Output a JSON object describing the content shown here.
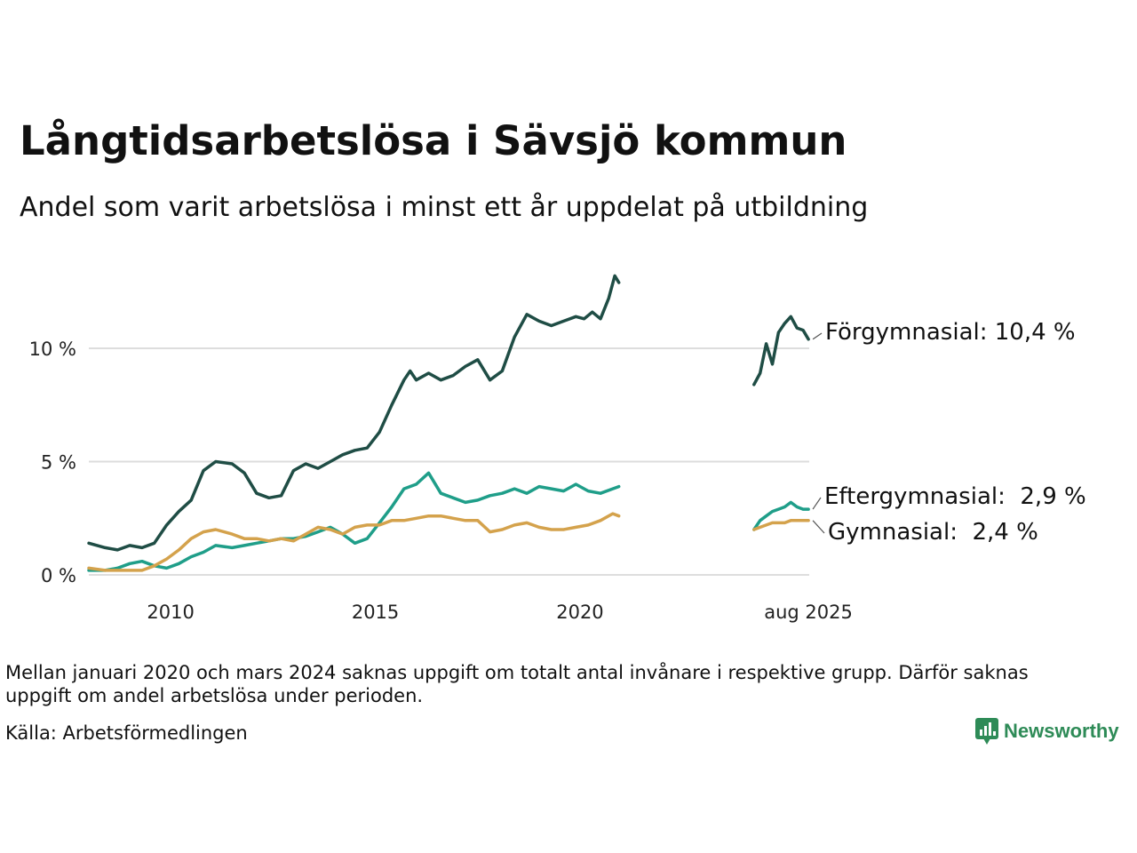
{
  "title": "Långtidsarbetslösa i Sävsjö kommun",
  "subtitle": "Andel som varit arbetslösa i minst ett år uppdelat på utbildning",
  "footnote": "Mellan januari 2020 och mars 2024 saknas uppgift om totalt antal invånare i respektive grupp. Därför saknas uppgift om andel arbetslösa under perioden.",
  "source": "Källa: Arbetsförmedlingen",
  "brand": {
    "name": "Newsworthy",
    "color": "#2e8b57",
    "icon": "bar-chart-speech-bubble-icon"
  },
  "chart_data": {
    "type": "line",
    "x_unit": "year",
    "xlim": [
      2008.0,
      2025.6
    ],
    "ylim": [
      0,
      14
    ],
    "y_ticks": [
      {
        "value": 0,
        "label": "0 %"
      },
      {
        "value": 5,
        "label": "5 %"
      },
      {
        "value": 10,
        "label": "10 %"
      }
    ],
    "x_ticks": [
      {
        "value": 2010,
        "label": "2010"
      },
      {
        "value": 2015,
        "label": "2015"
      },
      {
        "value": 2020,
        "label": "2020"
      },
      {
        "value": 2025.58,
        "label": "aug 2025"
      }
    ],
    "grid": true,
    "gap": {
      "note_ref": "footnote",
      "start": 2021.0,
      "end": 2024.25
    },
    "series": [
      {
        "name": "Förgymnasial",
        "label": "Förgymnasial: 10,4 %",
        "color": "#1f4d45",
        "segments": [
          [
            [
              2008.0,
              1.4
            ],
            [
              2008.4,
              1.2
            ],
            [
              2008.7,
              1.1
            ],
            [
              2009.0,
              1.3
            ],
            [
              2009.3,
              1.2
            ],
            [
              2009.6,
              1.4
            ],
            [
              2009.9,
              2.2
            ],
            [
              2010.2,
              2.8
            ],
            [
              2010.5,
              3.3
            ],
            [
              2010.8,
              4.6
            ],
            [
              2011.1,
              5.0
            ],
            [
              2011.5,
              4.9
            ],
            [
              2011.8,
              4.5
            ],
            [
              2012.1,
              3.6
            ],
            [
              2012.4,
              3.4
            ],
            [
              2012.7,
              3.5
            ],
            [
              2013.0,
              4.6
            ],
            [
              2013.3,
              4.9
            ],
            [
              2013.6,
              4.7
            ],
            [
              2013.9,
              5.0
            ],
            [
              2014.2,
              5.3
            ],
            [
              2014.5,
              5.5
            ],
            [
              2014.8,
              5.6
            ],
            [
              2015.1,
              6.3
            ],
            [
              2015.4,
              7.5
            ],
            [
              2015.7,
              8.6
            ],
            [
              2015.85,
              9.0
            ],
            [
              2016.0,
              8.6
            ],
            [
              2016.3,
              8.9
            ],
            [
              2016.6,
              8.6
            ],
            [
              2016.9,
              8.8
            ],
            [
              2017.2,
              9.2
            ],
            [
              2017.5,
              9.5
            ],
            [
              2017.8,
              8.6
            ],
            [
              2018.1,
              9.0
            ],
            [
              2018.4,
              10.5
            ],
            [
              2018.7,
              11.5
            ],
            [
              2019.0,
              11.2
            ],
            [
              2019.3,
              11.0
            ],
            [
              2019.6,
              11.2
            ],
            [
              2019.9,
              11.4
            ],
            [
              2020.1,
              11.3
            ],
            [
              2020.3,
              11.6
            ],
            [
              2020.5,
              11.3
            ],
            [
              2020.7,
              12.2
            ],
            [
              2020.85,
              13.2
            ],
            [
              2020.95,
              12.9
            ]
          ],
          [
            [
              2024.25,
              8.4
            ],
            [
              2024.4,
              8.9
            ],
            [
              2024.55,
              10.2
            ],
            [
              2024.7,
              9.3
            ],
            [
              2024.85,
              10.7
            ],
            [
              2025.0,
              11.1
            ],
            [
              2025.15,
              11.4
            ],
            [
              2025.3,
              10.9
            ],
            [
              2025.45,
              10.8
            ],
            [
              2025.58,
              10.4
            ]
          ]
        ]
      },
      {
        "name": "Eftergymnasial",
        "label": "Eftergymnasial:  2,9 %",
        "color": "#1f9e89",
        "segments": [
          [
            [
              2008.0,
              0.2
            ],
            [
              2008.4,
              0.2
            ],
            [
              2008.7,
              0.3
            ],
            [
              2009.0,
              0.5
            ],
            [
              2009.3,
              0.6
            ],
            [
              2009.6,
              0.4
            ],
            [
              2009.9,
              0.3
            ],
            [
              2010.2,
              0.5
            ],
            [
              2010.5,
              0.8
            ],
            [
              2010.8,
              1.0
            ],
            [
              2011.1,
              1.3
            ],
            [
              2011.5,
              1.2
            ],
            [
              2011.8,
              1.3
            ],
            [
              2012.1,
              1.4
            ],
            [
              2012.4,
              1.5
            ],
            [
              2012.7,
              1.6
            ],
            [
              2013.0,
              1.6
            ],
            [
              2013.3,
              1.7
            ],
            [
              2013.6,
              1.9
            ],
            [
              2013.9,
              2.1
            ],
            [
              2014.2,
              1.8
            ],
            [
              2014.5,
              1.4
            ],
            [
              2014.8,
              1.6
            ],
            [
              2015.1,
              2.3
            ],
            [
              2015.4,
              3.0
            ],
            [
              2015.7,
              3.8
            ],
            [
              2016.0,
              4.0
            ],
            [
              2016.3,
              4.5
            ],
            [
              2016.6,
              3.6
            ],
            [
              2016.9,
              3.4
            ],
            [
              2017.2,
              3.2
            ],
            [
              2017.5,
              3.3
            ],
            [
              2017.8,
              3.5
            ],
            [
              2018.1,
              3.6
            ],
            [
              2018.4,
              3.8
            ],
            [
              2018.7,
              3.6
            ],
            [
              2019.0,
              3.9
            ],
            [
              2019.3,
              3.8
            ],
            [
              2019.6,
              3.7
            ],
            [
              2019.9,
              4.0
            ],
            [
              2020.2,
              3.7
            ],
            [
              2020.5,
              3.6
            ],
            [
              2020.8,
              3.8
            ],
            [
              2020.95,
              3.9
            ]
          ],
          [
            [
              2024.25,
              2.0
            ],
            [
              2024.4,
              2.4
            ],
            [
              2024.55,
              2.6
            ],
            [
              2024.7,
              2.8
            ],
            [
              2024.85,
              2.9
            ],
            [
              2025.0,
              3.0
            ],
            [
              2025.15,
              3.2
            ],
            [
              2025.3,
              3.0
            ],
            [
              2025.45,
              2.9
            ],
            [
              2025.58,
              2.9
            ]
          ]
        ]
      },
      {
        "name": "Gymnasial",
        "label": "Gymnasial:  2,4 %",
        "color": "#d4a24c",
        "segments": [
          [
            [
              2008.0,
              0.3
            ],
            [
              2008.4,
              0.2
            ],
            [
              2008.7,
              0.2
            ],
            [
              2009.0,
              0.2
            ],
            [
              2009.3,
              0.2
            ],
            [
              2009.6,
              0.4
            ],
            [
              2009.9,
              0.7
            ],
            [
              2010.2,
              1.1
            ],
            [
              2010.5,
              1.6
            ],
            [
              2010.8,
              1.9
            ],
            [
              2011.1,
              2.0
            ],
            [
              2011.5,
              1.8
            ],
            [
              2011.8,
              1.6
            ],
            [
              2012.1,
              1.6
            ],
            [
              2012.4,
              1.5
            ],
            [
              2012.7,
              1.6
            ],
            [
              2013.0,
              1.5
            ],
            [
              2013.3,
              1.8
            ],
            [
              2013.6,
              2.1
            ],
            [
              2013.9,
              2.0
            ],
            [
              2014.2,
              1.8
            ],
            [
              2014.5,
              2.1
            ],
            [
              2014.8,
              2.2
            ],
            [
              2015.1,
              2.2
            ],
            [
              2015.4,
              2.4
            ],
            [
              2015.7,
              2.4
            ],
            [
              2016.0,
              2.5
            ],
            [
              2016.3,
              2.6
            ],
            [
              2016.6,
              2.6
            ],
            [
              2016.9,
              2.5
            ],
            [
              2017.2,
              2.4
            ],
            [
              2017.5,
              2.4
            ],
            [
              2017.8,
              1.9
            ],
            [
              2018.1,
              2.0
            ],
            [
              2018.4,
              2.2
            ],
            [
              2018.7,
              2.3
            ],
            [
              2019.0,
              2.1
            ],
            [
              2019.3,
              2.0
            ],
            [
              2019.6,
              2.0
            ],
            [
              2019.9,
              2.1
            ],
            [
              2020.2,
              2.2
            ],
            [
              2020.5,
              2.4
            ],
            [
              2020.8,
              2.7
            ],
            [
              2020.95,
              2.6
            ]
          ],
          [
            [
              2024.25,
              2.0
            ],
            [
              2024.4,
              2.1
            ],
            [
              2024.55,
              2.2
            ],
            [
              2024.7,
              2.3
            ],
            [
              2024.85,
              2.3
            ],
            [
              2025.0,
              2.3
            ],
            [
              2025.15,
              2.4
            ],
            [
              2025.3,
              2.4
            ],
            [
              2025.45,
              2.4
            ],
            [
              2025.58,
              2.4
            ]
          ]
        ]
      }
    ]
  }
}
